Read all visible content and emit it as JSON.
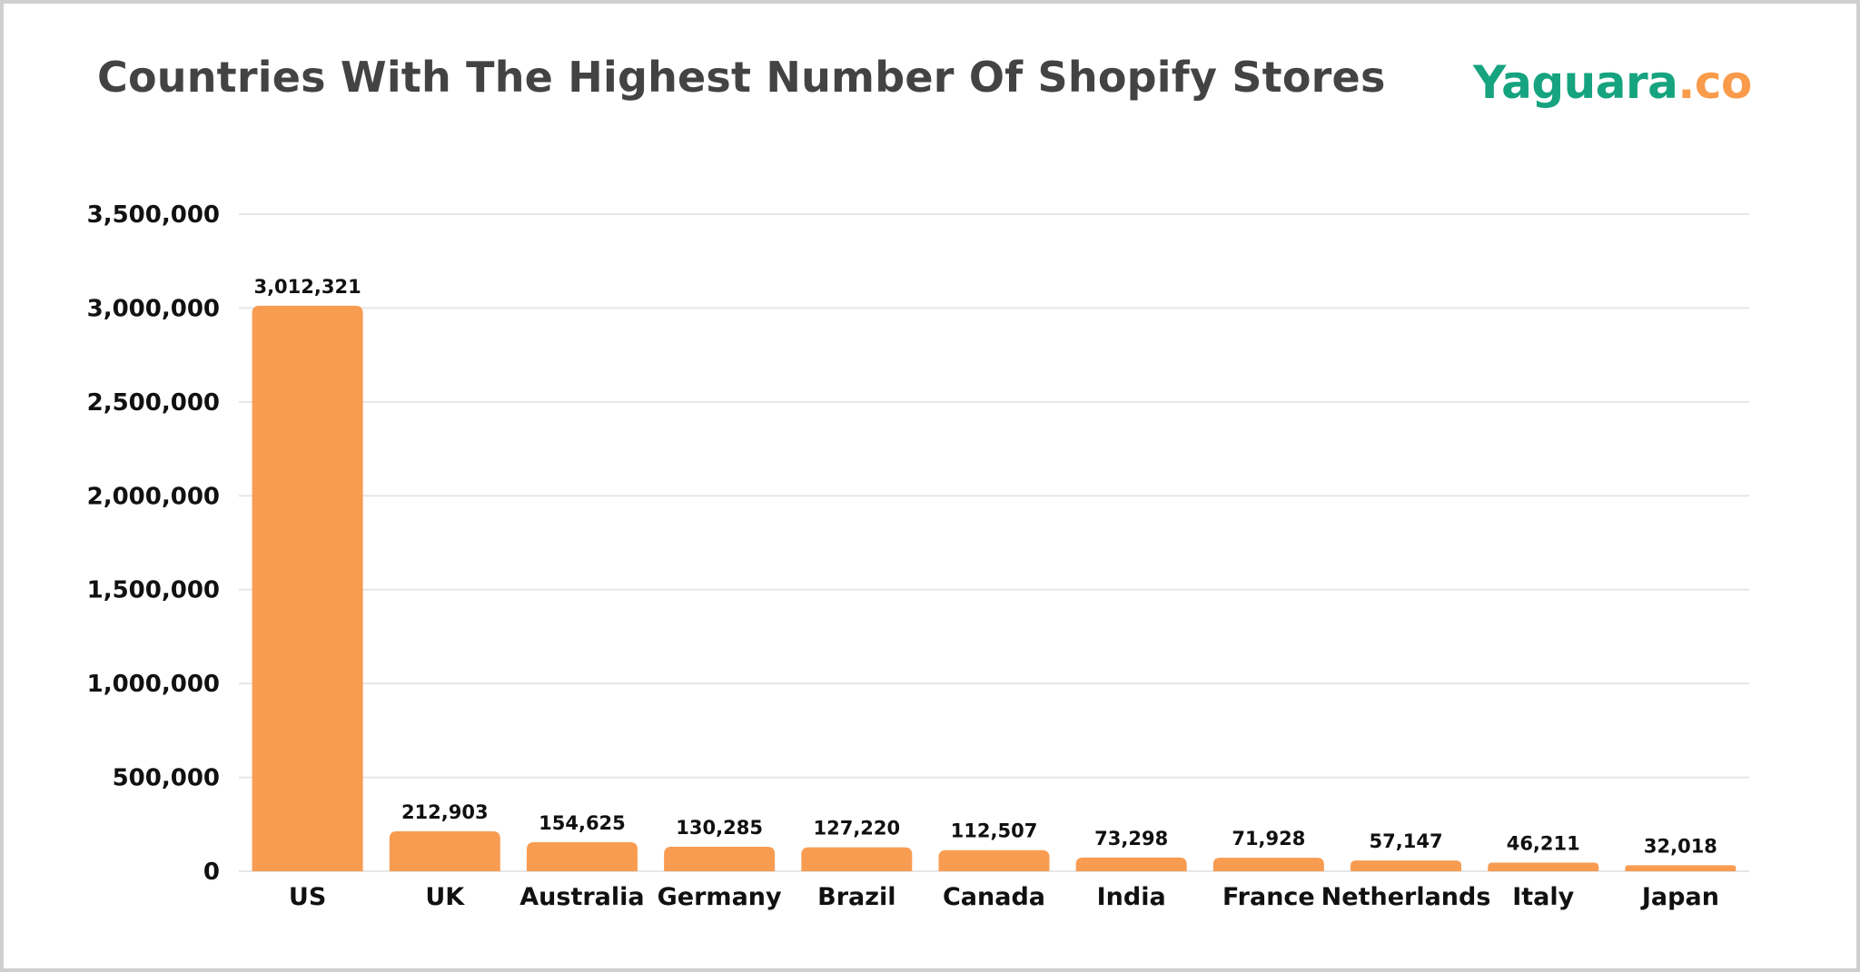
{
  "chart_data": {
    "type": "bar",
    "title": "Countries With The Highest Number Of Shopify Stores",
    "categories": [
      "US",
      "UK",
      "Australia",
      "Germany",
      "Brazil",
      "Canada",
      "India",
      "France",
      "Netherlands",
      "Italy",
      "Japan"
    ],
    "values": [
      3012321,
      212903,
      154625,
      130285,
      127220,
      112507,
      73298,
      71928,
      57147,
      46211,
      32018
    ],
    "value_labels": [
      "3,012,321",
      "212,903",
      "154,625",
      "130,285",
      "127,220",
      "112,507",
      "73,298",
      "71,928",
      "57,147",
      "46,211",
      "32,018"
    ],
    "xlabel": "",
    "ylabel": "",
    "ylim": [
      0,
      3500000
    ],
    "yticks": [
      0,
      500000,
      1000000,
      1500000,
      2000000,
      2500000,
      3000000,
      3500000
    ],
    "ytick_labels": [
      "0",
      "500,000",
      "1,000,000",
      "1,500,000",
      "2,000,000",
      "2,500,000",
      "3,000,000",
      "3,500,000"
    ],
    "grid": true,
    "bar_color": "#F89C52"
  },
  "logo": {
    "main": "Yaguara",
    "suffix": ".co",
    "main_color": "#16a37f",
    "suffix_color": "#f99b4a"
  }
}
